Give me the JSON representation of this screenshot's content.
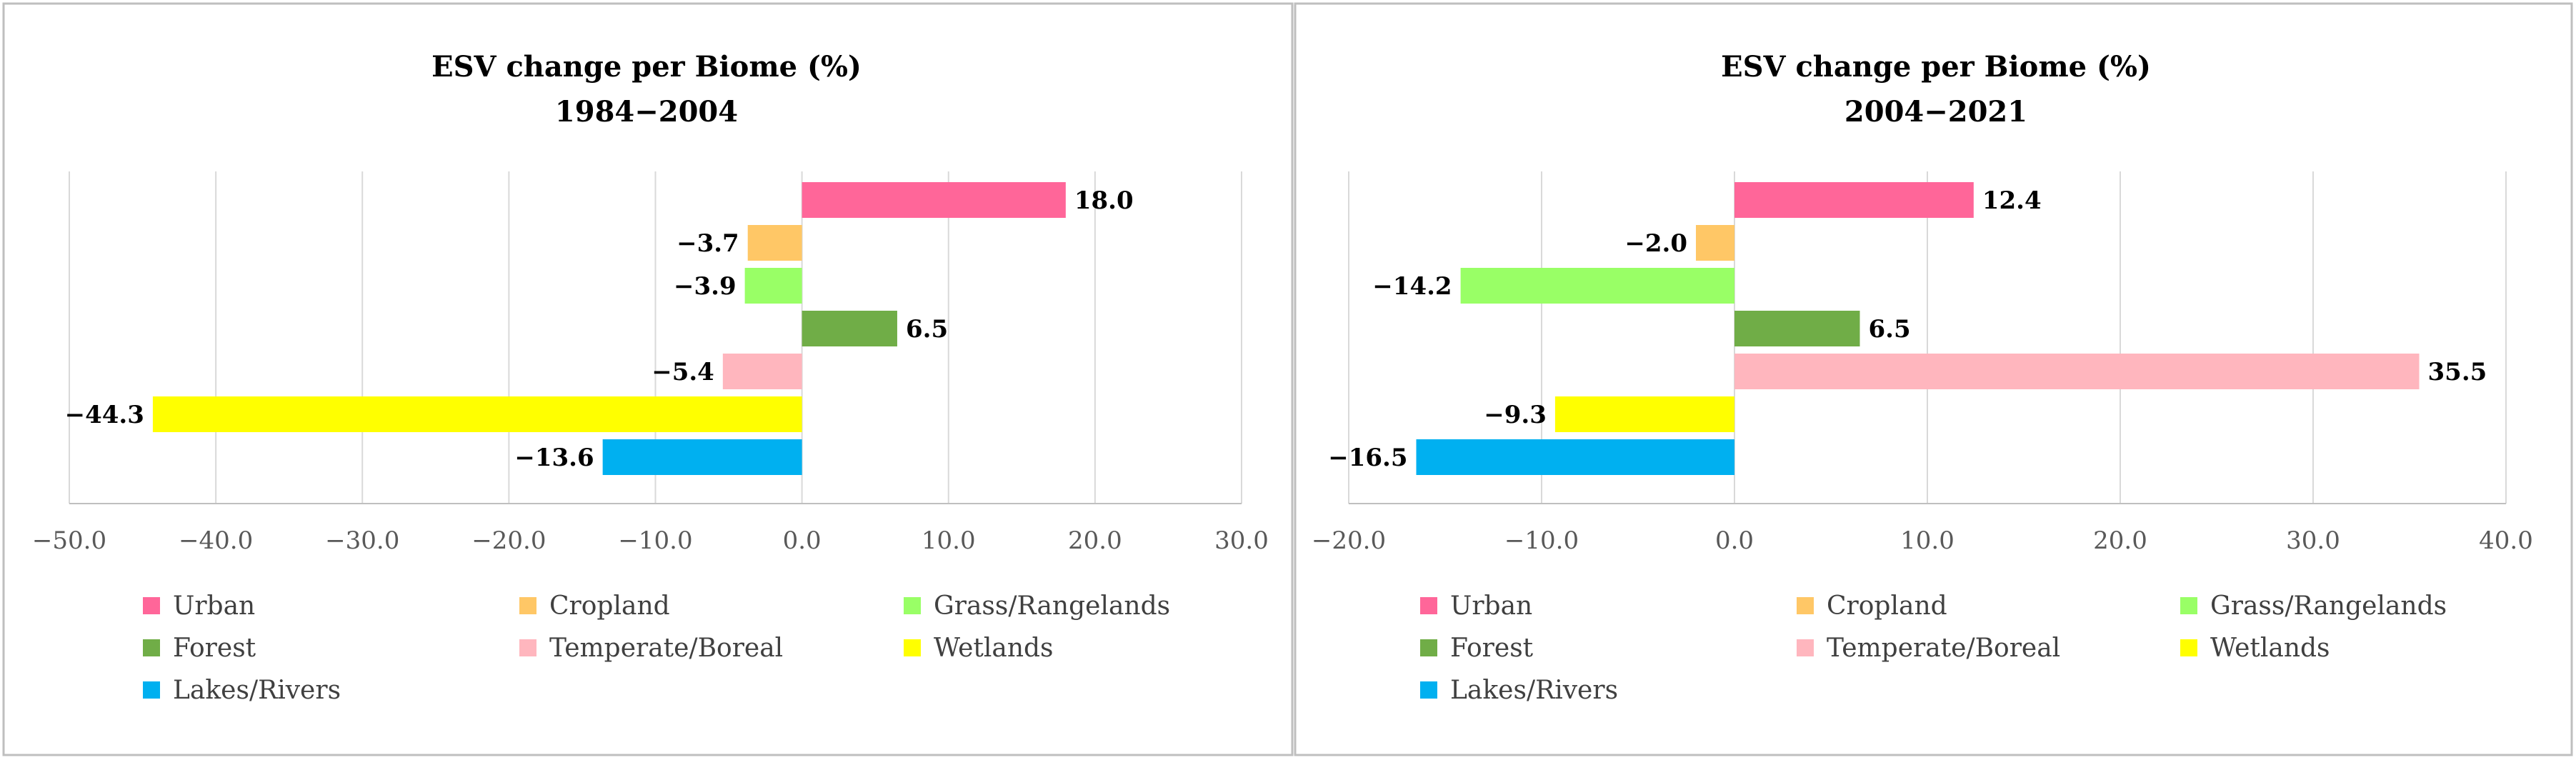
{
  "chart_data": [
    {
      "type": "bar",
      "orientation": "horizontal",
      "title": "ESV change per Biome (%)",
      "subtitle": "1984−2004",
      "xlim": [
        -50,
        30
      ],
      "xticks": [
        "−50.0",
        "−40.0",
        "−30.0",
        "−20.0",
        "−10.0",
        "0.0",
        "10.0",
        "20.0",
        "30.0"
      ],
      "grid": true,
      "legend_position": "bottom",
      "series": [
        {
          "name": "Urban",
          "color": "#FF6699",
          "value": 18.0,
          "label": "18.0"
        },
        {
          "name": "Cropland",
          "color": "#FFC766",
          "value": -3.7,
          "label": "−3.7"
        },
        {
          "name": "Grass/Rangelands",
          "color": "#99FF66",
          "value": -3.9,
          "label": "−3.9"
        },
        {
          "name": "Forest",
          "color": "#70AD47",
          "value": 6.5,
          "label": "6.5"
        },
        {
          "name": "Temperate/Boreal",
          "color": "#FFB6BE",
          "value": -5.4,
          "label": "−5.4"
        },
        {
          "name": "Wetlands",
          "color": "#FFFF00",
          "value": -44.3,
          "label": "−44.3"
        },
        {
          "name": "Lakes/Rivers",
          "color": "#00B0F0",
          "value": -13.6,
          "label": "−13.6"
        }
      ]
    },
    {
      "type": "bar",
      "orientation": "horizontal",
      "title": "ESV change per Biome (%)",
      "subtitle": "2004−2021",
      "xlim": [
        -20,
        40
      ],
      "xticks": [
        "−20.0",
        "−10.0",
        "0.0",
        "10.0",
        "20.0",
        "30.0",
        "40.0"
      ],
      "grid": true,
      "legend_position": "bottom",
      "series": [
        {
          "name": "Urban",
          "color": "#FF6699",
          "value": 12.4,
          "label": "12.4"
        },
        {
          "name": "Cropland",
          "color": "#FFC766",
          "value": -2.0,
          "label": "−2.0"
        },
        {
          "name": "Grass/Rangelands",
          "color": "#99FF66",
          "value": -14.2,
          "label": "−14.2"
        },
        {
          "name": "Forest",
          "color": "#70AD47",
          "value": 6.5,
          "label": "6.5"
        },
        {
          "name": "Temperate/Boreal",
          "color": "#FFB6BE",
          "value": 35.5,
          "label": "35.5"
        },
        {
          "name": "Wetlands",
          "color": "#FFFF00",
          "value": -9.3,
          "label": "−9.3"
        },
        {
          "name": "Lakes/Rivers",
          "color": "#00B0F0",
          "value": -16.5,
          "label": "−16.5"
        }
      ]
    }
  ]
}
